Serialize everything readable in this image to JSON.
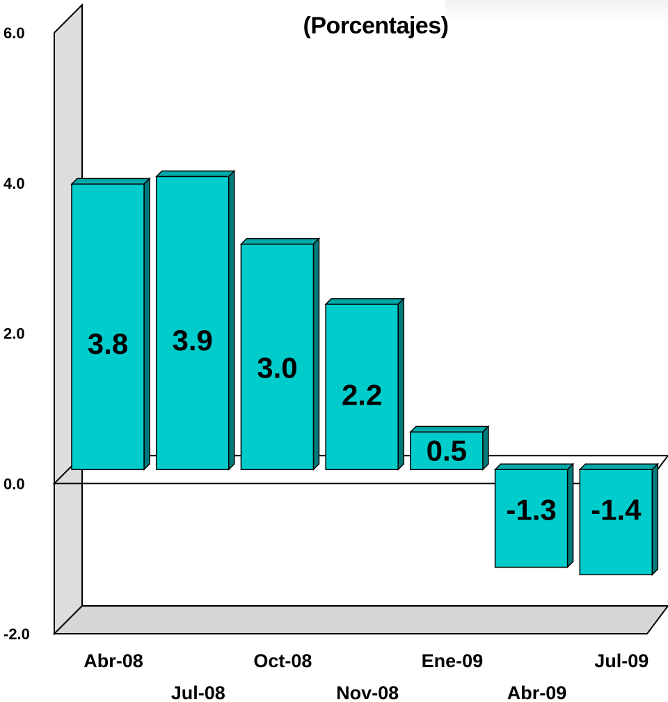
{
  "chart_data": {
    "type": "bar",
    "title": "(Porcentajes)",
    "categories": [
      "Abr-08",
      "Jul-08",
      "Oct-08",
      "Nov-08",
      "Ene-09",
      "Abr-09",
      "Jul-09"
    ],
    "values": [
      3.8,
      3.9,
      3.0,
      2.2,
      0.5,
      -1.3,
      -1.4
    ],
    "value_labels": [
      "3.8",
      "3.9",
      "3.0",
      "2.2",
      "0.5",
      "-1.3",
      "-1.4"
    ],
    "yticks": [
      "6.0",
      "4.0",
      "2.0",
      "0.0",
      "-2.0"
    ],
    "ylim": [
      -2,
      6
    ],
    "grid": false,
    "style_3d": true,
    "colors": {
      "bar_front": "#00cccc",
      "bar_top": "#00a8a8",
      "bar_side": "#007b7b",
      "wall": "#dddddd",
      "floor": "#d6d6d6"
    }
  }
}
